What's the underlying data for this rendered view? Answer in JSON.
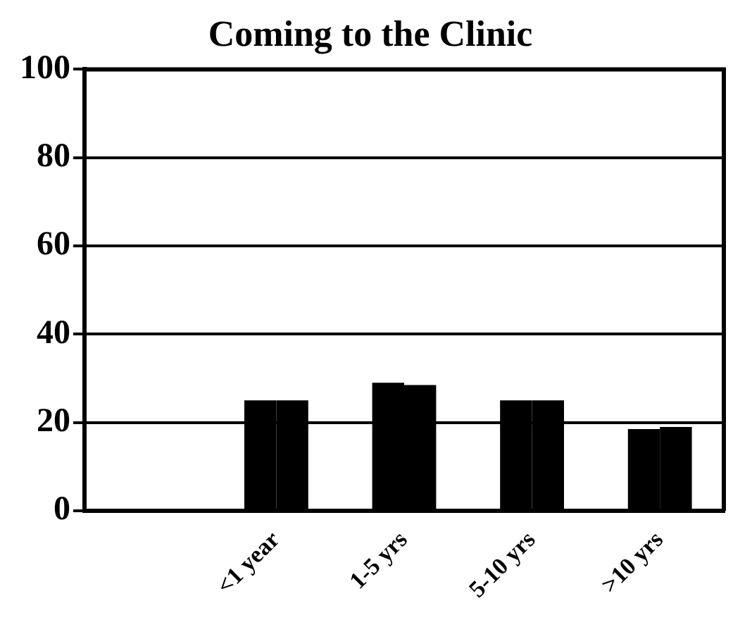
{
  "chart_data": {
    "type": "bar",
    "title": "Coming to the Clinic",
    "categories": [
      null,
      "<1 year",
      "1-5 yrs",
      "5-10 yrs",
      ">10 yrs"
    ],
    "series": [
      {
        "color": "#000000",
        "values": [
          null,
          25,
          29,
          25,
          18.5
        ]
      },
      {
        "color": "#000000",
        "values": [
          null,
          25,
          28.5,
          25,
          19
        ]
      }
    ],
    "ylim": [
      0,
      100
    ],
    "yticks": [
      0,
      20,
      40,
      60,
      80,
      100
    ],
    "grid": "y",
    "legend": false
  }
}
